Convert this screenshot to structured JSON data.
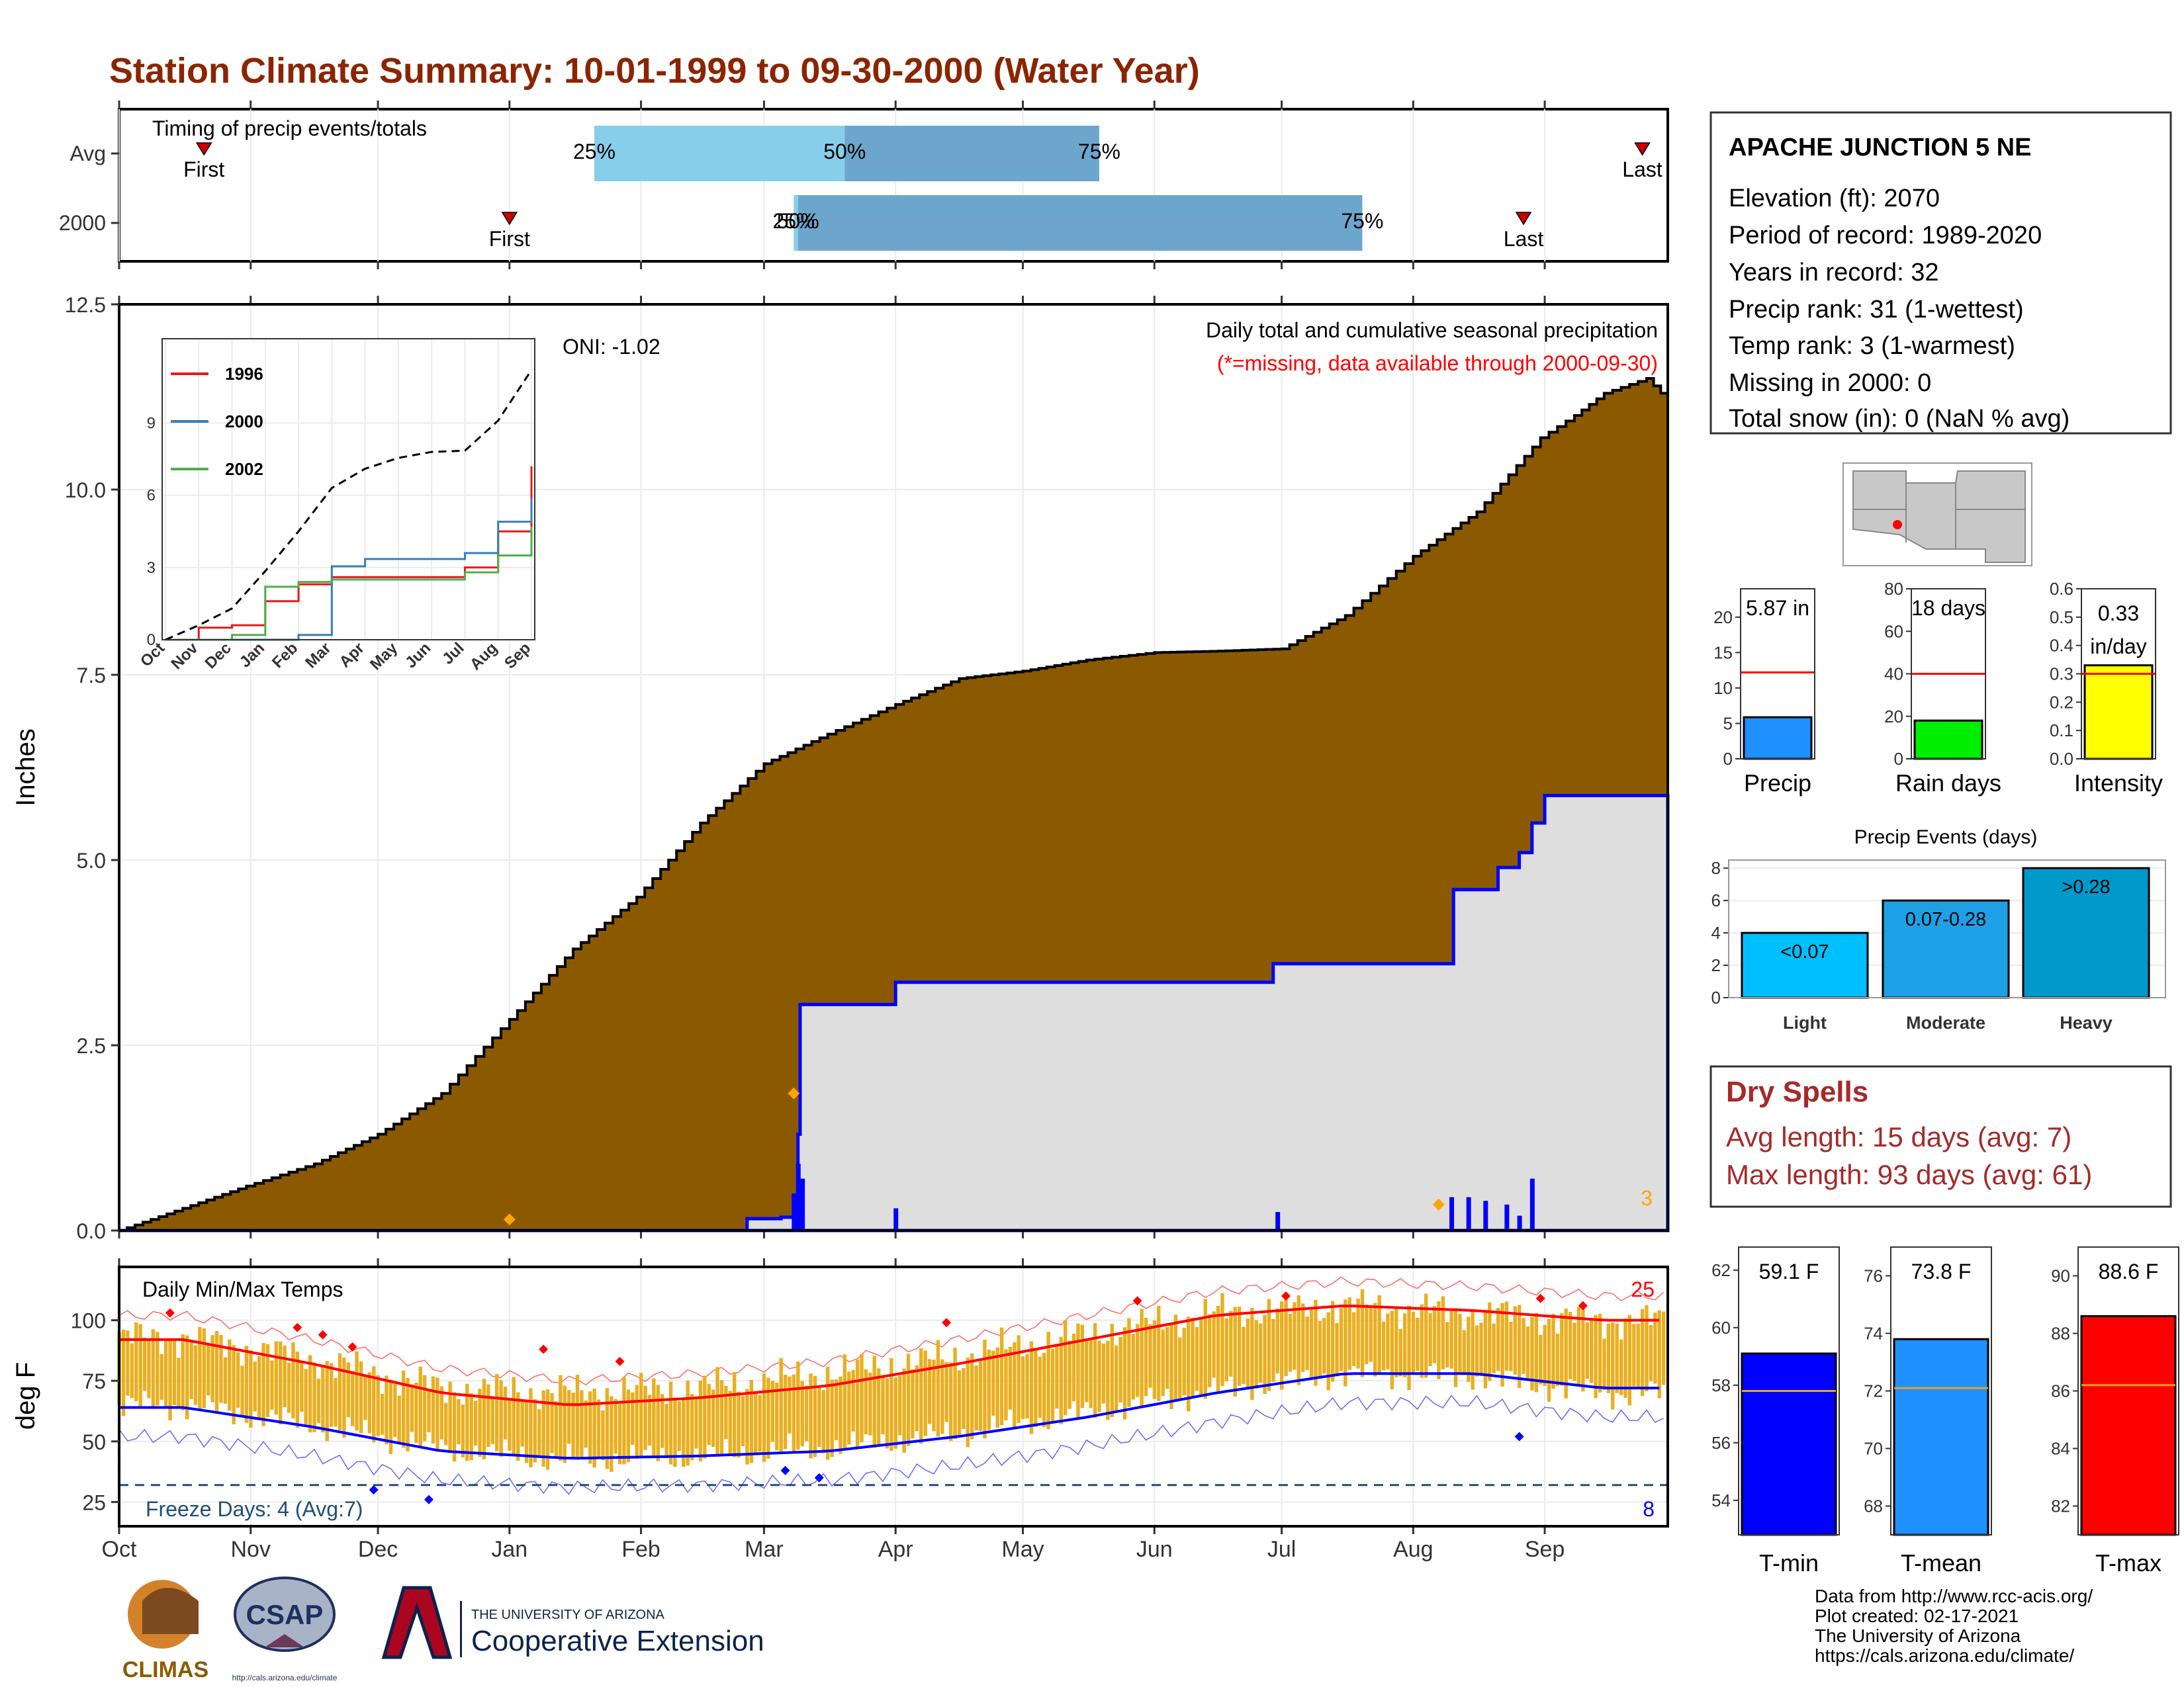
{
  "title": "Station Climate Summary: 10-01-1999 to 09-30-2000 (Water Year)",
  "colors": {
    "title": "#8B2500",
    "cumulative_avg_fill": "#8B5A00",
    "cumulative_year_fill": "#DEDEDE",
    "daily_bar": "#0000FF",
    "quartile_light": "#87CEEB",
    "quartile_dark": "#6CA6CD",
    "temp_bar": "#E8AF22",
    "tmax_avg": "#FF0000",
    "tmin_avg": "#0000FF",
    "dry_spells": "#A52A2A",
    "marker": "#FFA500",
    "event_light": "#00BFFF",
    "event_moderate": "#1EA0E6",
    "event_heavy": "#0099CC"
  },
  "timing": {
    "label": "Timing of precip events/totals",
    "rows": [
      "Avg",
      "2000"
    ],
    "avg": {
      "first": "First",
      "last": "Last",
      "first_day": 20,
      "last_day": 359,
      "q25": "25%",
      "q50": "50%",
      "q75": "75%",
      "q25_day": 112,
      "q50_day": 171,
      "q75_day": 231
    },
    "year": {
      "first": "First",
      "last": "Last",
      "first_day": 92,
      "last_day": 331,
      "q25": "25%",
      "q50": "50%",
      "q75": "75%",
      "q25_day": 159,
      "q50_day": 160,
      "q75_day": 293
    }
  },
  "months": [
    "Oct",
    "Nov",
    "Dec",
    "Jan",
    "Feb",
    "Mar",
    "Apr",
    "May",
    "Jun",
    "Jul",
    "Aug",
    "Sep"
  ],
  "month_starts": [
    0,
    31,
    61,
    92,
    123,
    152,
    183,
    213,
    244,
    274,
    305,
    336
  ],
  "precip": {
    "ylabel": "Inches",
    "yticks": [
      "0.0",
      "2.5",
      "5.0",
      "7.5",
      "10.0",
      "12.5"
    ],
    "ylim": [
      0,
      12.5
    ],
    "annotation": "Daily total and cumulative seasonal precipitation",
    "missing_note": "(*=missing, data available through 2000-09-30)",
    "oni": "ONI: -1.02",
    "count_label": "3"
  },
  "inset": {
    "months": [
      "Oct",
      "Nov",
      "Dec",
      "Jan",
      "Feb",
      "Mar",
      "Apr",
      "May",
      "Jun",
      "Jul",
      "Aug",
      "Sep"
    ],
    "yticks": [
      "0",
      "3",
      "6",
      "9"
    ],
    "legend": [
      {
        "name": "1996",
        "color": "#E41A1C"
      },
      {
        "name": "2000",
        "color": "#377EB8"
      },
      {
        "name": "2002",
        "color": "#4DAF4A"
      }
    ]
  },
  "station": {
    "name": "APACHE JUNCTION 5 NE",
    "lines": [
      "Elevation (ft): 2070",
      "Period of record: 1989-2020",
      "Years in record: 32",
      "Precip rank: 31 (1-wettest)",
      "Temp rank: 3 (1-warmest)",
      "Missing in 2000: 0",
      "Total snow (in): 0 (NaN % avg)"
    ]
  },
  "summary_bars": [
    {
      "label": "Precip",
      "value_text": "5.87 in",
      "value": 5.87,
      "avg": 12.2,
      "ymax": 24,
      "ticks": [
        "0",
        "5",
        "10",
        "15",
        "20"
      ],
      "tick_values": [
        0,
        5,
        10,
        15,
        20
      ],
      "color": "#1E90FF"
    },
    {
      "label": "Rain days",
      "value_text": "18 days",
      "value": 18,
      "avg": 40,
      "ymax": 80,
      "ticks": [
        "0",
        "20",
        "40",
        "60",
        "80"
      ],
      "tick_values": [
        0,
        20,
        40,
        60,
        80
      ],
      "color": "#00EE00"
    },
    {
      "label": "Intensity",
      "value_text": "0.33",
      "value_text2": "in/day",
      "value": 0.33,
      "avg": 0.3,
      "ymax": 0.6,
      "ticks": [
        "0.0",
        "0.1",
        "0.2",
        "0.3",
        "0.4",
        "0.5",
        "0.6"
      ],
      "tick_values": [
        0,
        0.1,
        0.2,
        0.3,
        0.4,
        0.5,
        0.6
      ],
      "color": "#FFFF00"
    }
  ],
  "events": {
    "title": "Precip Events (days)",
    "yticks": [
      "0",
      "2",
      "4",
      "6",
      "8"
    ],
    "bars": [
      {
        "label": "Light",
        "inner": "<0.07",
        "value": 4
      },
      {
        "label": "Moderate",
        "inner": "0.07-0.28",
        "value": 6
      },
      {
        "label": "Heavy",
        "inner": ">0.28",
        "value": 8
      }
    ]
  },
  "dry_spells": {
    "title": "Dry Spells",
    "avg_line": "Avg length: 15 days (avg: 7)",
    "max_line": "Max length: 93 days (avg: 61)"
  },
  "temps": {
    "label": "Daily Min/Max Temps",
    "ylabel": "deg F",
    "yticks": [
      "25",
      "50",
      "75",
      "100"
    ],
    "freeze_label": "Freeze Days: 4 (Avg:7)",
    "hot_count": "25",
    "cold_count": "8"
  },
  "temp_bars": [
    {
      "label": "T-min",
      "value_text": "59.1 F",
      "value": 59.1,
      "avg": 57.8,
      "ymin": 52.8,
      "ymax": 62.8,
      "ticks": [
        "54",
        "56",
        "58",
        "60",
        "62"
      ],
      "tick_values": [
        54,
        56,
        58,
        60,
        62
      ],
      "color": "#0000FF"
    },
    {
      "label": "T-mean",
      "value_text": "73.8 F",
      "value": 73.8,
      "avg": 72.1,
      "ymin": 67.0,
      "ymax": 77.0,
      "ticks": [
        "68",
        "70",
        "72",
        "74",
        "76"
      ],
      "tick_values": [
        68,
        70,
        72,
        74,
        76
      ],
      "color": "#1E90FF"
    },
    {
      "label": "T-max",
      "value_text": "88.6 F",
      "value": 88.6,
      "avg": 86.2,
      "ymin": 81.0,
      "ymax": 91.0,
      "ticks": [
        "82",
        "84",
        "86",
        "88",
        "90"
      ],
      "tick_values": [
        82,
        84,
        86,
        88,
        90
      ],
      "color": "#FF0000"
    }
  ],
  "footer": {
    "lines": [
      "Data from http://www.rcc-acis.org/",
      "Plot created: 02-17-2021",
      "The University of Arizona",
      "https://cals.arizona.edu/climate/"
    ],
    "climas": "CLIMAS",
    "csap": "CSAP",
    "csap_url": "http://cals.arizona.edu/climate",
    "ua_small": "THE UNIVERSITY OF ARIZONA",
    "ua_big": "Cooperative Extension"
  },
  "chart_data": [
    {
      "type": "area",
      "title": "Daily total and cumulative seasonal precipitation",
      "ylabel": "Inches",
      "ylim": [
        0,
        12.5
      ],
      "series": [
        {
          "name": "Average cumulative",
          "x_day": [
            0,
            15,
            30,
            46,
            61,
            76,
            92,
            107,
            122,
            137,
            152,
            167,
            183,
            198,
            213,
            228,
            244,
            259,
            274,
            289,
            305,
            320,
            335,
            343,
            350,
            360,
            365
          ],
          "values": [
            0.0,
            0.3,
            0.6,
            0.9,
            1.3,
            1.85,
            2.85,
            3.8,
            4.5,
            5.5,
            6.3,
            6.7,
            7.1,
            7.45,
            7.55,
            7.7,
            7.8,
            7.82,
            7.85,
            8.3,
            9.1,
            9.7,
            10.7,
            11.0,
            11.3,
            11.5,
            11.2
          ]
        },
        {
          "name": "2000 cumulative",
          "x_day": [
            0,
            92,
            148,
            156,
            159,
            160,
            160.5,
            183,
            249,
            270,
            272,
            314,
            314.5,
            318,
            325,
            330,
            333,
            336,
            365
          ],
          "values": [
            0.0,
            0.0,
            0.16,
            0.18,
            0.2,
            1.3,
            3.05,
            3.35,
            3.35,
            3.35,
            3.6,
            3.6,
            4.6,
            4.6,
            4.9,
            5.1,
            5.5,
            5.87,
            5.87
          ]
        },
        {
          "name": "2000 daily",
          "x_day": [
            159,
            160,
            161,
            183,
            273,
            314,
            318,
            322,
            327,
            330,
            333
          ],
          "values": [
            0.5,
            0.9,
            0.7,
            0.3,
            0.25,
            0.45,
            0.45,
            0.4,
            0.35,
            0.2,
            0.7
          ]
        }
      ]
    },
    {
      "type": "line",
      "title": "",
      "xlabel": "",
      "ylabel": "",
      "ylim": [
        0,
        12.5
      ],
      "categories": [
        "Oct",
        "Nov",
        "Dec",
        "Jan",
        "Feb",
        "Mar",
        "Apr",
        "May",
        "Jun",
        "Jul",
        "Aug",
        "Sep"
      ],
      "series": [
        {
          "name": "1996",
          "values": [
            0.0,
            0.5,
            0.6,
            1.6,
            2.3,
            2.6,
            2.6,
            2.6,
            2.6,
            3.0,
            4.5,
            7.2
          ]
        },
        {
          "name": "2000",
          "values": [
            0.0,
            0.0,
            0.0,
            0.0,
            0.2,
            3.05,
            3.35,
            3.35,
            3.35,
            3.6,
            4.9,
            5.87
          ]
        },
        {
          "name": "2002",
          "values": [
            0.0,
            0.0,
            0.2,
            2.2,
            2.4,
            2.5,
            2.5,
            2.5,
            2.5,
            2.8,
            3.5,
            4.7
          ]
        },
        {
          "values": [
            0.0,
            0.6,
            1.3,
            2.85,
            4.5,
            6.3,
            7.1,
            7.55,
            7.8,
            7.85,
            9.1,
            11.2
          ]
        }
      ]
    },
    {
      "type": "line",
      "title": "Daily Min/Max Temps",
      "ylabel": "deg F",
      "ylim": [
        15,
        122
      ],
      "categories": [
        "Oct",
        "Nov",
        "Dec",
        "Jan",
        "Feb",
        "Mar",
        "Apr",
        "May",
        "Jun",
        "Jul",
        "Aug",
        "Sep"
      ],
      "series": [
        {
          "name": "Avg Tmax",
          "values": [
            92,
            82,
            70,
            65,
            68,
            73,
            82,
            92,
            102,
            106,
            104,
            100
          ]
        },
        {
          "name": "Avg Tmin",
          "values": [
            64,
            56,
            46,
            43,
            44,
            46,
            52,
            60,
            70,
            78,
            78,
            72
          ]
        },
        {
          "name": "Daily Tmax",
          "values": [
            93,
            84,
            72,
            70,
            72,
            78,
            85,
            94,
            103,
            106,
            103,
            100
          ]
        },
        {
          "name": "Daily Tmin",
          "values": [
            65,
            57,
            47,
            42,
            44,
            47,
            53,
            62,
            71,
            78,
            77,
            70
          ]
        }
      ]
    }
  ]
}
